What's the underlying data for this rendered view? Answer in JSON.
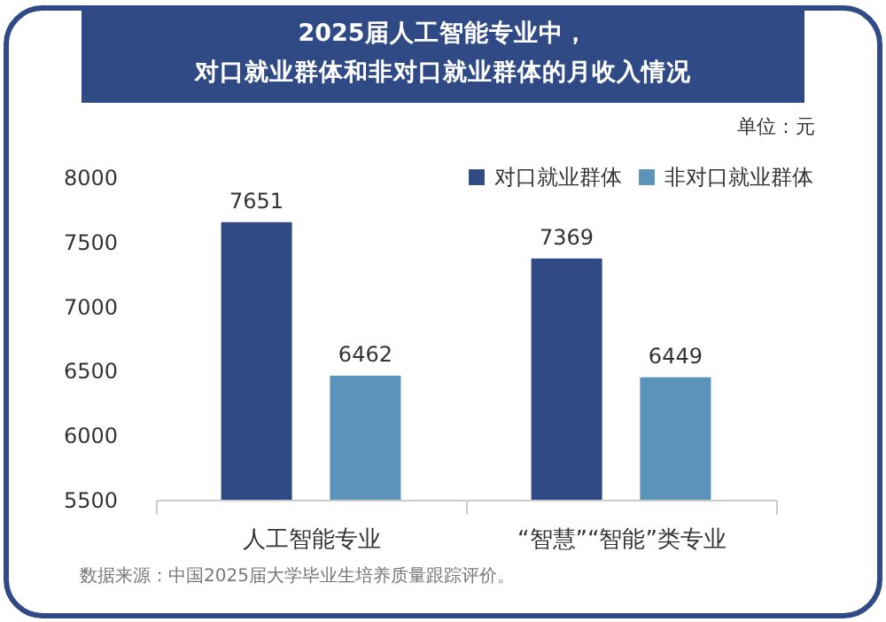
{
  "chart_data": {
    "type": "bar",
    "title": "2025届人工智能专业中，",
    "subtitle": "对口就业群体和非对口就业群体的月收入情况",
    "categories": [
      "人工智能专业",
      "“智慧”“智能”类专业"
    ],
    "series": [
      {
        "name": "对口就业群体",
        "color": "#2f4a85",
        "values": [
          7651,
          7369
        ]
      },
      {
        "name": "非对口就业群体",
        "color": "#5b93bb",
        "values": [
          6462,
          6449
        ]
      }
    ],
    "ylim": [
      5500,
      8000
    ],
    "yticks": [
      5500,
      6000,
      6500,
      7000,
      7500,
      8000
    ],
    "grid": false,
    "legend": "top right",
    "data_labels": true,
    "annotations": [
      "单位：元",
      "数据来源：中国2025届大学毕业生培养质量跟踪评价。"
    ]
  }
}
